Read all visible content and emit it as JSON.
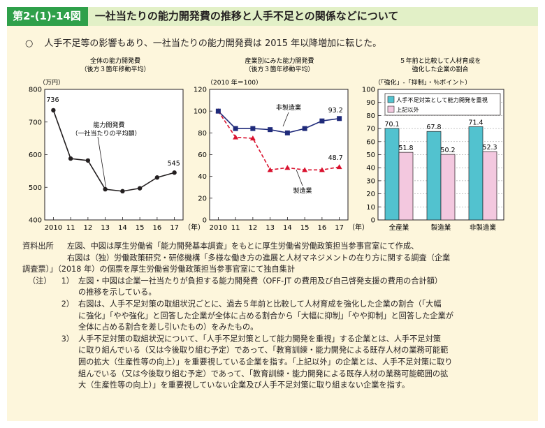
{
  "header": {
    "figure_number": "第2-(1)-14図",
    "title": "一社当たりの能力開発費の推移と人手不足との関係などについて"
  },
  "lead": {
    "bullet": "○",
    "text": "人手不足等の影響もあり、一社当たりの能力開発費は 2015 年以降増加に転じた。"
  },
  "colors": {
    "header_green": "#2fa04a",
    "title_band": "#e2f0c7",
    "panel_bg": "#fdf6dc",
    "nonmanu_navy": "#1f2a7a",
    "manu_red": "#d9112e",
    "bar_teal": "#52c2cf",
    "bar_pink": "#f3c8df"
  },
  "chart_data": [
    {
      "type": "line",
      "title": "全体の能力開発費",
      "subtitle": "（後方３箇年移動平均）",
      "ylabel": "（万円）",
      "xlabel": "（年）",
      "x": [
        "2010",
        "11",
        "12",
        "13",
        "14",
        "15",
        "16",
        "17"
      ],
      "series": [
        {
          "name": "能力開発費（一社当たりの平均額）",
          "values": [
            736,
            588,
            582,
            494,
            488,
            497,
            530,
            545
          ]
        }
      ],
      "annotation_lines": [
        "能力開発費",
        "（一社当たりの平均額）"
      ],
      "data_labels": {
        "first": "736",
        "last": "545"
      },
      "ylim": [
        400,
        800
      ],
      "yticks": [
        "400",
        "500",
        "600",
        "700",
        "800"
      ],
      "grid": false
    },
    {
      "type": "line",
      "title": "産業別にみた能力開発費",
      "subtitle": "（後方３箇年移動平均）",
      "ylabel": "（2010 年＝100）",
      "xlabel": "（年）",
      "x": [
        "2010",
        "11",
        "12",
        "13",
        "14",
        "15",
        "16",
        "17"
      ],
      "series": [
        {
          "name": "非製造業",
          "values": [
            100,
            84,
            84,
            83,
            80,
            84,
            91,
            93.2
          ]
        },
        {
          "name": "製造業",
          "values": [
            100,
            76,
            75,
            46,
            48,
            46,
            46,
            48.7
          ]
        }
      ],
      "data_labels": {
        "非製造業": "93.2",
        "製造業": "48.7"
      },
      "ylim": [
        0,
        120
      ],
      "yticks": [
        "0",
        "20",
        "40",
        "60",
        "80",
        "100",
        "120"
      ],
      "grid": false
    },
    {
      "type": "bar",
      "title": "５年前と比較して人材育成を",
      "subtitle": "強化した企業の割合",
      "ylabel": "（「強化」-「抑制」・％ポイント）",
      "categories": [
        "全産業",
        "製造業",
        "非製造業"
      ],
      "series": [
        {
          "name": "人手不足対策として能力開発を重視",
          "values": [
            70.1,
            67.8,
            71.4
          ]
        },
        {
          "name": "上記以外",
          "values": [
            51.8,
            50.2,
            52.3
          ]
        }
      ],
      "value_labels": [
        [
          "70.1",
          "67.8",
          "71.4"
        ],
        [
          "51.8",
          "50.2",
          "52.3"
        ]
      ],
      "ylim": [
        0,
        100
      ],
      "yticks": [
        "0",
        "10",
        "20",
        "30",
        "40",
        "50",
        "60",
        "70",
        "80",
        "90",
        "100"
      ],
      "grid": true,
      "legend_position": "top-left"
    }
  ],
  "notes": {
    "source_label": "資料出所",
    "source_lines": [
      "左図、中図は厚生労働省「能力開発基本調査」をもとに厚生労働省労働政策担当参事官室にて作成、",
      "右図は（独）労働政策研究・研修機構「多様な働き方の進展と人材マネジメントの在り方に関する調査（企業",
      "調査票）」（2018 年）の個票を厚生労働省労働政策担当参事官室にて独自集計"
    ],
    "note_label": "（注）",
    "items": [
      {
        "num": "1）",
        "lines": [
          "左図・中図は企業一社当たりが負担する能力開発費（OFF-JT の費用及び自己啓発支援の費用の合計額）",
          "の推移を示している。"
        ]
      },
      {
        "num": "2）",
        "lines": [
          "右図は、人手不足対策の取組状況ごとに、過去５年前と比較して人材育成を強化した企業の割合（「大幅",
          "に強化」「やや強化」と回答した企業が全体に占める割合から「大幅に抑制」「やや抑制」と回答した企業が",
          "全体に占める割合を差し引いたもの）をみたもの。"
        ]
      },
      {
        "num": "3）",
        "lines": [
          "人手不足対策の取組状況について、「人手不足対策として能力開発を重視」する企業とは、人手不足対策",
          "に取り組んでいる（又は今後取り組む予定）であって、「教育訓練・能力開発による既存人材の業務可能範",
          "囲の拡大（生産性等の向上）」を重要視している企業を指す。「上記以外」の企業とは、人手不足対策に取り",
          "組んでいる（又は今後取り組む予定）であって、「教育訓練・能力開発による既存人材の業務可能範囲の拡",
          "大（生産性等の向上）」を重要視していない企業及び人手不足対策に取り組まない企業を指す。"
        ]
      }
    ]
  }
}
